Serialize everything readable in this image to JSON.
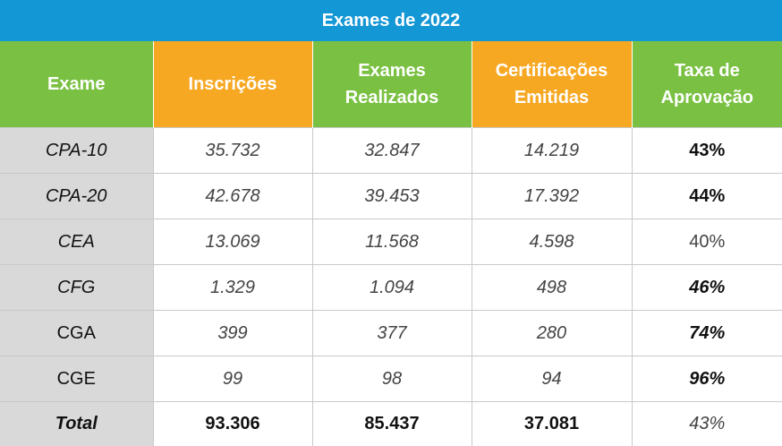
{
  "title": "Exames de 2022",
  "headers": [
    "Exame",
    "Inscrições",
    "Exames Realizados",
    "Certificações Emitidas",
    "Taxa de Aprovação"
  ],
  "header_lines": [
    [
      "Exame"
    ],
    [
      "Inscrições"
    ],
    [
      "Exames",
      "Realizados"
    ],
    [
      "Certificações",
      "Emitidas"
    ],
    [
      "Taxa de",
      "Aprovação"
    ]
  ],
  "colors": {
    "title_bg": "#1497d5",
    "header_green": "#7ac143",
    "header_orange": "#f7a823",
    "first_col_bg": "#d9d9d9"
  },
  "rows": [
    {
      "exame": "CPA-10",
      "inscricoes": "35.732",
      "realizados": "32.847",
      "emitidas": "14.219",
      "taxa": "43%"
    },
    {
      "exame": "CPA-20",
      "inscricoes": "42.678",
      "realizados": "39.453",
      "emitidas": "17.392",
      "taxa": "44%"
    },
    {
      "exame": "CEA",
      "inscricoes": "13.069",
      "realizados": "11.568",
      "emitidas": "4.598",
      "taxa": "40%"
    },
    {
      "exame": "CFG",
      "inscricoes": "1.329",
      "realizados": "1.094",
      "emitidas": "498",
      "taxa": "46%"
    },
    {
      "exame": "CGA",
      "inscricoes": "399",
      "realizados": "377",
      "emitidas": "280",
      "taxa": "74%"
    },
    {
      "exame": "CGE",
      "inscricoes": "99",
      "realizados": "98",
      "emitidas": "94",
      "taxa": "96%"
    },
    {
      "exame": "Total",
      "inscricoes": "93.306",
      "realizados": "85.437",
      "emitidas": "37.081",
      "taxa": "43%"
    }
  ]
}
